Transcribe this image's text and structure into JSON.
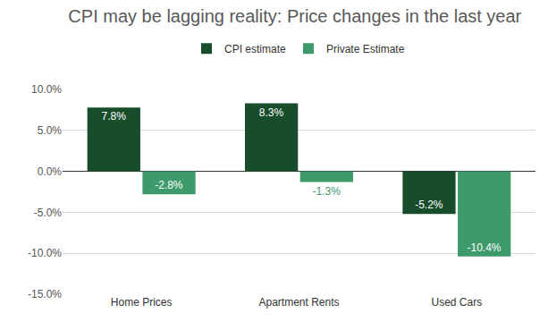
{
  "chart_data": {
    "type": "bar",
    "title": "CPI may be lagging reality: Price changes in the last year",
    "categories": [
      "Home Prices",
      "Apartment Rents",
      "Used Cars"
    ],
    "series": [
      {
        "name": "CPI estimate",
        "color": "#174d2b",
        "values": [
          7.8,
          8.3,
          -5.2
        ],
        "value_labels": [
          "7.8%",
          "8.3%",
          "-5.2%"
        ]
      },
      {
        "name": "Private Estimate",
        "color": "#3d9a6a",
        "values": [
          -2.8,
          -1.3,
          -10.4
        ],
        "value_labels": [
          "-2.8%",
          "-1.3%",
          "-10.4%"
        ]
      }
    ],
    "ylim": [
      -15,
      10
    ],
    "yticks": [
      {
        "value": -15,
        "label": "-15.0%"
      },
      {
        "value": -10,
        "label": "-10.0%"
      },
      {
        "value": -5,
        "label": "-5.0%"
      },
      {
        "value": 0,
        "label": "0.0%"
      },
      {
        "value": 5,
        "label": "5.0%"
      },
      {
        "value": 10,
        "label": "10.0%"
      }
    ],
    "grid": true,
    "legend": "top",
    "data_labels": true
  }
}
